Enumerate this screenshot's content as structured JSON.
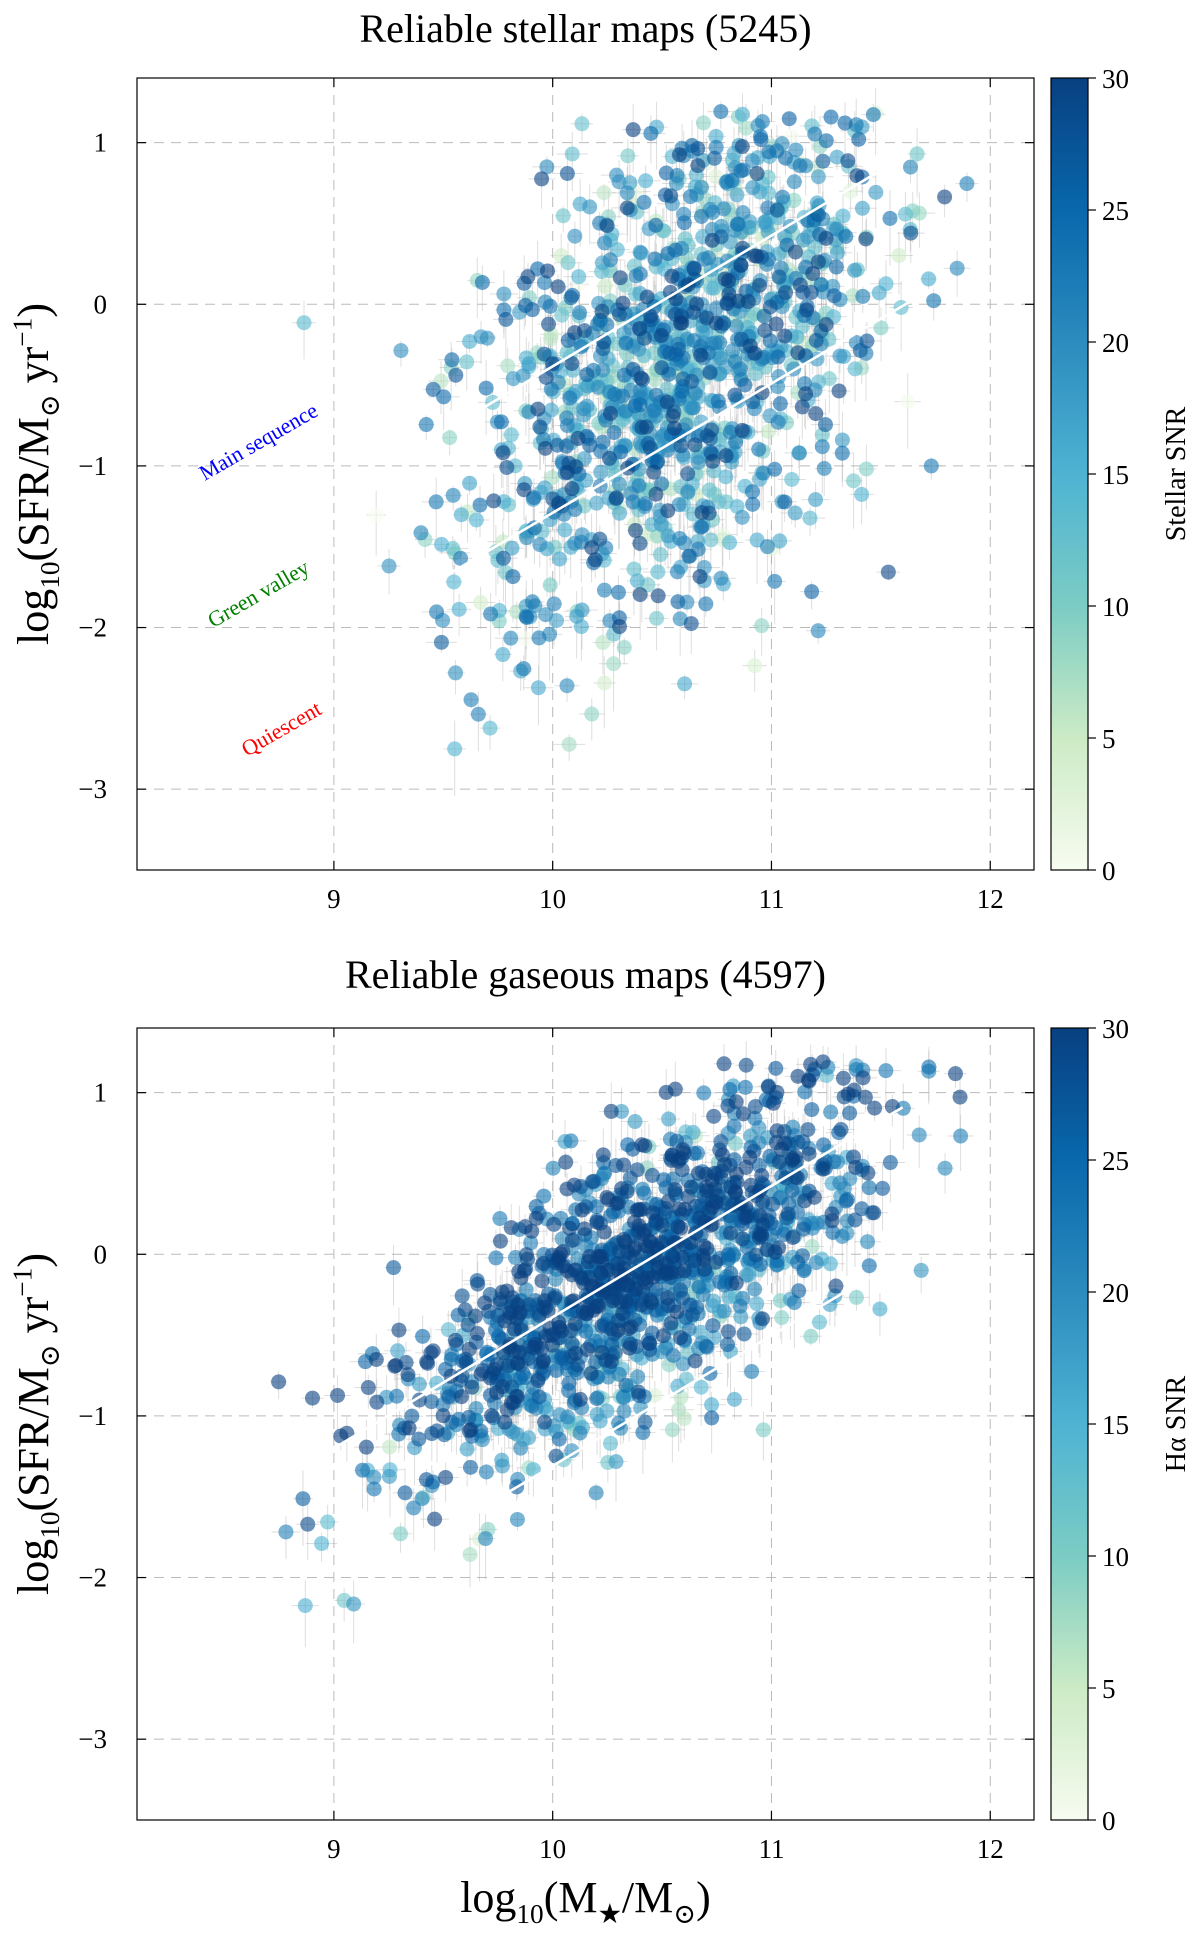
{
  "chart_data": [
    {
      "type": "scatter",
      "title": "Reliable stellar maps (5245)",
      "xlabel": "log10(M★/M⊙)",
      "ylabel": "log10(SFR/M⊙ yr−1)",
      "colorbar_label": "Stellar SNR",
      "xlim": [
        8.1,
        12.2
      ],
      "ylim": [
        -3.5,
        1.4
      ],
      "x_ticks": [
        "9",
        "10",
        "11",
        "12"
      ],
      "y_ticks": [
        "1",
        "0",
        "−1",
        "−2",
        "−3"
      ],
      "colorbar_ticks": [
        "0",
        "5",
        "10",
        "15",
        "20",
        "25",
        "30"
      ],
      "colorbar_range": [
        0,
        30
      ],
      "colormap": [
        "#f7fcf0",
        "#ccebc5",
        "#7bccc4",
        "#4eb3d3",
        "#2b8cbe",
        "#0868ac",
        "#084081"
      ],
      "grid": true,
      "n_points": 5245,
      "reference_lines": [
        {
          "x": [
            9.3,
            11.6
          ],
          "y": [
            -0.95,
            0.91
          ]
        },
        {
          "x": [
            9.3,
            11.8
          ],
          "y": [
            -1.85,
            0.15
          ]
        }
      ],
      "annotations": [
        {
          "text": "Main sequence",
          "color": "#0000ff"
        },
        {
          "text": "Green valley",
          "color": "#008000"
        },
        {
          "text": "Quiescent",
          "color": "#ff0000"
        }
      ],
      "distribution": {
        "mass_center": 10.6,
        "mass_spread": 0.45,
        "sfr_at_10": -0.8,
        "sfr_slope": 0.85,
        "sfr_spread": 0.75,
        "snr_mean": 18,
        "snr_spread": 8
      }
    },
    {
      "type": "scatter",
      "title": "Reliable gaseous maps (4597)",
      "xlabel": "log10(M★/M⊙)",
      "ylabel": "log10(SFR/M⊙ yr−1)",
      "colorbar_label": "Hα SNR",
      "xlim": [
        8.1,
        12.2
      ],
      "ylim": [
        -3.5,
        1.4
      ],
      "x_ticks": [
        "9",
        "10",
        "11",
        "12"
      ],
      "y_ticks": [
        "1",
        "0",
        "−1",
        "−2",
        "−3"
      ],
      "colorbar_ticks": [
        "0",
        "5",
        "10",
        "15",
        "20",
        "25",
        "30"
      ],
      "colorbar_range": [
        0,
        30
      ],
      "colormap": [
        "#f7fcf0",
        "#ccebc5",
        "#7bccc4",
        "#4eb3d3",
        "#2b8cbe",
        "#0868ac",
        "#084081"
      ],
      "grid": true,
      "n_points": 4597,
      "reference_lines": [
        {
          "x": [
            9.0,
            11.6
          ],
          "y": [
            -1.2,
            0.91
          ]
        },
        {
          "x": [
            9.7,
            11.6
          ],
          "y": [
            -1.55,
            -0.02
          ]
        }
      ],
      "annotations": [],
      "distribution": {
        "mass_center": 10.4,
        "mass_spread": 0.55,
        "sfr_at_10": -0.45,
        "sfr_slope": 0.8,
        "sfr_spread": 0.4,
        "snr_mean": 26,
        "snr_spread": 6
      }
    }
  ]
}
